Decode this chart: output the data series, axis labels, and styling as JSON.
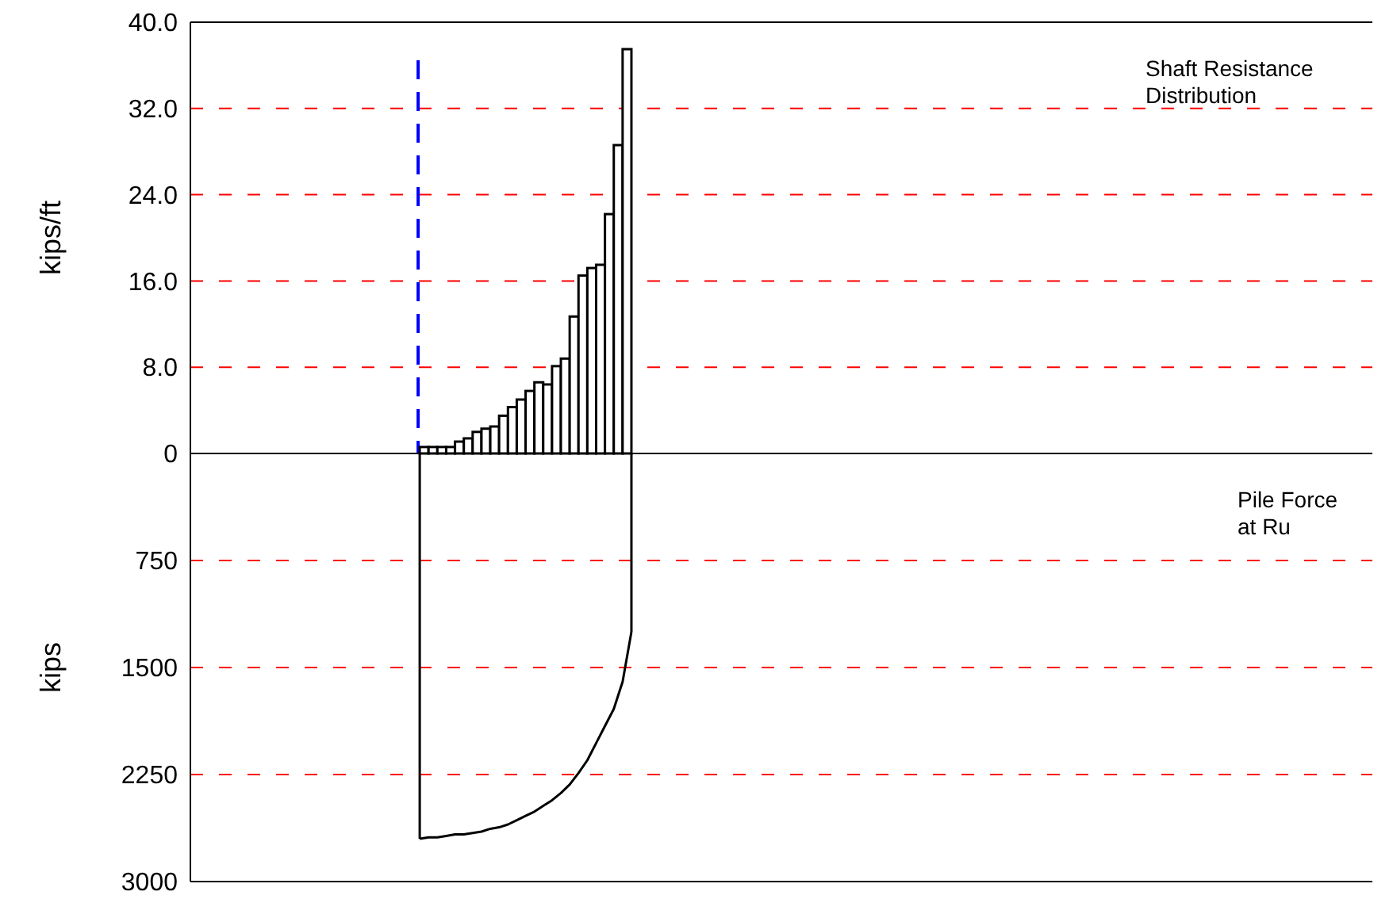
{
  "chart_data": [
    {
      "type": "bar",
      "categories": [
        null,
        null,
        null,
        null,
        null,
        null,
        null,
        null,
        null,
        null,
        null,
        null,
        null,
        null,
        null,
        null,
        null,
        null,
        null,
        null,
        null,
        null,
        null,
        null,
        null,
        null,
        null,
        null,
        null,
        null,
        null,
        null,
        null,
        null,
        null,
        null,
        null,
        null,
        null,
        null,
        null,
        null,
        null,
        null,
        null,
        null,
        null,
        null,
        null,
        null,
        null,
        null,
        null,
        null,
        null,
        null,
        null,
        null,
        null,
        null,
        null,
        null,
        null,
        null,
        null,
        null,
        null,
        null,
        null,
        null,
        null,
        null,
        null,
        null,
        null,
        null,
        null,
        null,
        null,
        null,
        null,
        null,
        null,
        null,
        null,
        null,
        null,
        null,
        null,
        null,
        null,
        null,
        null,
        null,
        null,
        null,
        null,
        null,
        null,
        null,
        null,
        null,
        null,
        null,
        null,
        null,
        null,
        null,
        null,
        null,
        null,
        null,
        null,
        null,
        null,
        null,
        null,
        null,
        null,
        null,
        null,
        null,
        null,
        null,
        null,
        null,
        null,
        null,
        null,
        null,
        null,
        null,
        null,
        null
      ],
      "values": [
        null,
        null,
        null,
        null,
        null,
        null,
        null,
        null,
        null,
        null,
        null,
        null,
        null,
        null,
        null,
        null,
        null,
        null,
        null,
        null,
        null,
        null,
        null,
        null,
        null,
        null,
        0.6,
        0.6,
        0.6,
        0.6,
        1.1,
        1.4,
        2.0,
        2.3,
        2.5,
        3.5,
        4.3,
        5.0,
        5.8,
        6.6,
        6.4,
        8.1,
        8.8,
        12.7,
        16.5,
        17.2,
        17.5,
        22.2,
        28.6,
        37.5,
        null,
        null,
        null,
        null,
        null,
        null,
        null,
        null,
        null,
        null,
        null,
        null,
        null,
        null,
        null,
        null,
        null,
        null,
        null,
        null,
        null,
        null,
        null,
        null,
        null,
        null,
        null,
        null,
        null,
        null,
        null,
        null,
        null,
        null,
        null,
        null,
        null,
        null,
        null,
        null,
        null,
        null,
        null,
        null,
        null,
        null,
        null,
        null,
        null,
        null,
        null,
        null,
        null,
        null,
        null,
        null,
        null,
        null,
        null,
        null,
        null,
        null,
        null,
        null,
        null,
        null,
        null,
        null,
        null,
        null,
        null,
        null,
        null,
        null,
        null,
        null,
        null,
        null,
        null,
        null,
        null,
        null,
        null,
        null
      ],
      "color": "#ffffff",
      "ylim": [
        0,
        40
      ],
      "yticks": [
        {
          "value": 8,
          "label": "8.0"
        },
        {
          "value": 16,
          "label": "16.0"
        },
        {
          "value": 24,
          "label": "24.0"
        },
        {
          "value": 32,
          "label": "32.0"
        },
        {
          "value": 40,
          "label": "40.0"
        }
      ],
      "ylabel": "kips/ft",
      "grid": "y",
      "tick_labels": "y",
      "annotations": [
        "Shaft Resistance\nDistribution"
      ]
    },
    {
      "type": "line",
      "categories": [
        null,
        null,
        null,
        null,
        null,
        null,
        null,
        null,
        null,
        null,
        null,
        null,
        null,
        null,
        null,
        null,
        null,
        null,
        null,
        null,
        null,
        null,
        null,
        null,
        null,
        null,
        null,
        null,
        null,
        null,
        null,
        null,
        null,
        null,
        null,
        null,
        null,
        null,
        null,
        null,
        null,
        null,
        null,
        null,
        null,
        null,
        null,
        null,
        null,
        null,
        null,
        null,
        null,
        null,
        null,
        null,
        null,
        null,
        null,
        null,
        null,
        null,
        null,
        null,
        null,
        null,
        null,
        null,
        null,
        null,
        null,
        null,
        null,
        null,
        null,
        null,
        null,
        null,
        null,
        null,
        null,
        null,
        null,
        null,
        null,
        null,
        null,
        null,
        null,
        null,
        null,
        null,
        null,
        null,
        null,
        null,
        null,
        null,
        null,
        null,
        null,
        null,
        null,
        null,
        null,
        null,
        null,
        null,
        null,
        null,
        null,
        null,
        null,
        null,
        null,
        null,
        null,
        null,
        null,
        null,
        null,
        null,
        null,
        null,
        null,
        null,
        null,
        null,
        null,
        null,
        null,
        null,
        null,
        null,
        null
      ],
      "values": [
        null,
        null,
        null,
        null,
        null,
        null,
        null,
        null,
        null,
        null,
        null,
        null,
        null,
        null,
        null,
        null,
        null,
        null,
        null,
        null,
        null,
        null,
        null,
        null,
        null,
        null,
        2700,
        2690,
        2690,
        2680,
        2670,
        2670,
        2660,
        2650,
        2630,
        2620,
        2600,
        2570,
        2540,
        2510,
        2470,
        2430,
        2380,
        2320,
        2240,
        2150,
        2030,
        1910,
        1790,
        1600,
        1250,
        null,
        null,
        null,
        null,
        null,
        null,
        null,
        null,
        null,
        null,
        null,
        null,
        null,
        null,
        null,
        null,
        null,
        null,
        null,
        null,
        null,
        null,
        null,
        null,
        null,
        null,
        null,
        null,
        null,
        null,
        null,
        null,
        null,
        null,
        null,
        null,
        null,
        null,
        null,
        null,
        null,
        null,
        null,
        null,
        null,
        null,
        null,
        null,
        null,
        null,
        null,
        null,
        null,
        null,
        null,
        null,
        null,
        null,
        null,
        null,
        null,
        null,
        null,
        null,
        null,
        null,
        null,
        null,
        null,
        null,
        null,
        null,
        null,
        null,
        null,
        null,
        null,
        null,
        null,
        null,
        null,
        null,
        null,
        null
      ],
      "color": "#000000",
      "ylim": [
        3000,
        0
      ],
      "yticks": [
        0,
        750,
        1500,
        2250,
        3000
      ],
      "ylabel": "kips",
      "grid": "y",
      "tick_labels": "y",
      "marker": "none",
      "line_style": "solid",
      "annotations": [
        "Pile Force\nat Ru"
      ]
    }
  ]
}
